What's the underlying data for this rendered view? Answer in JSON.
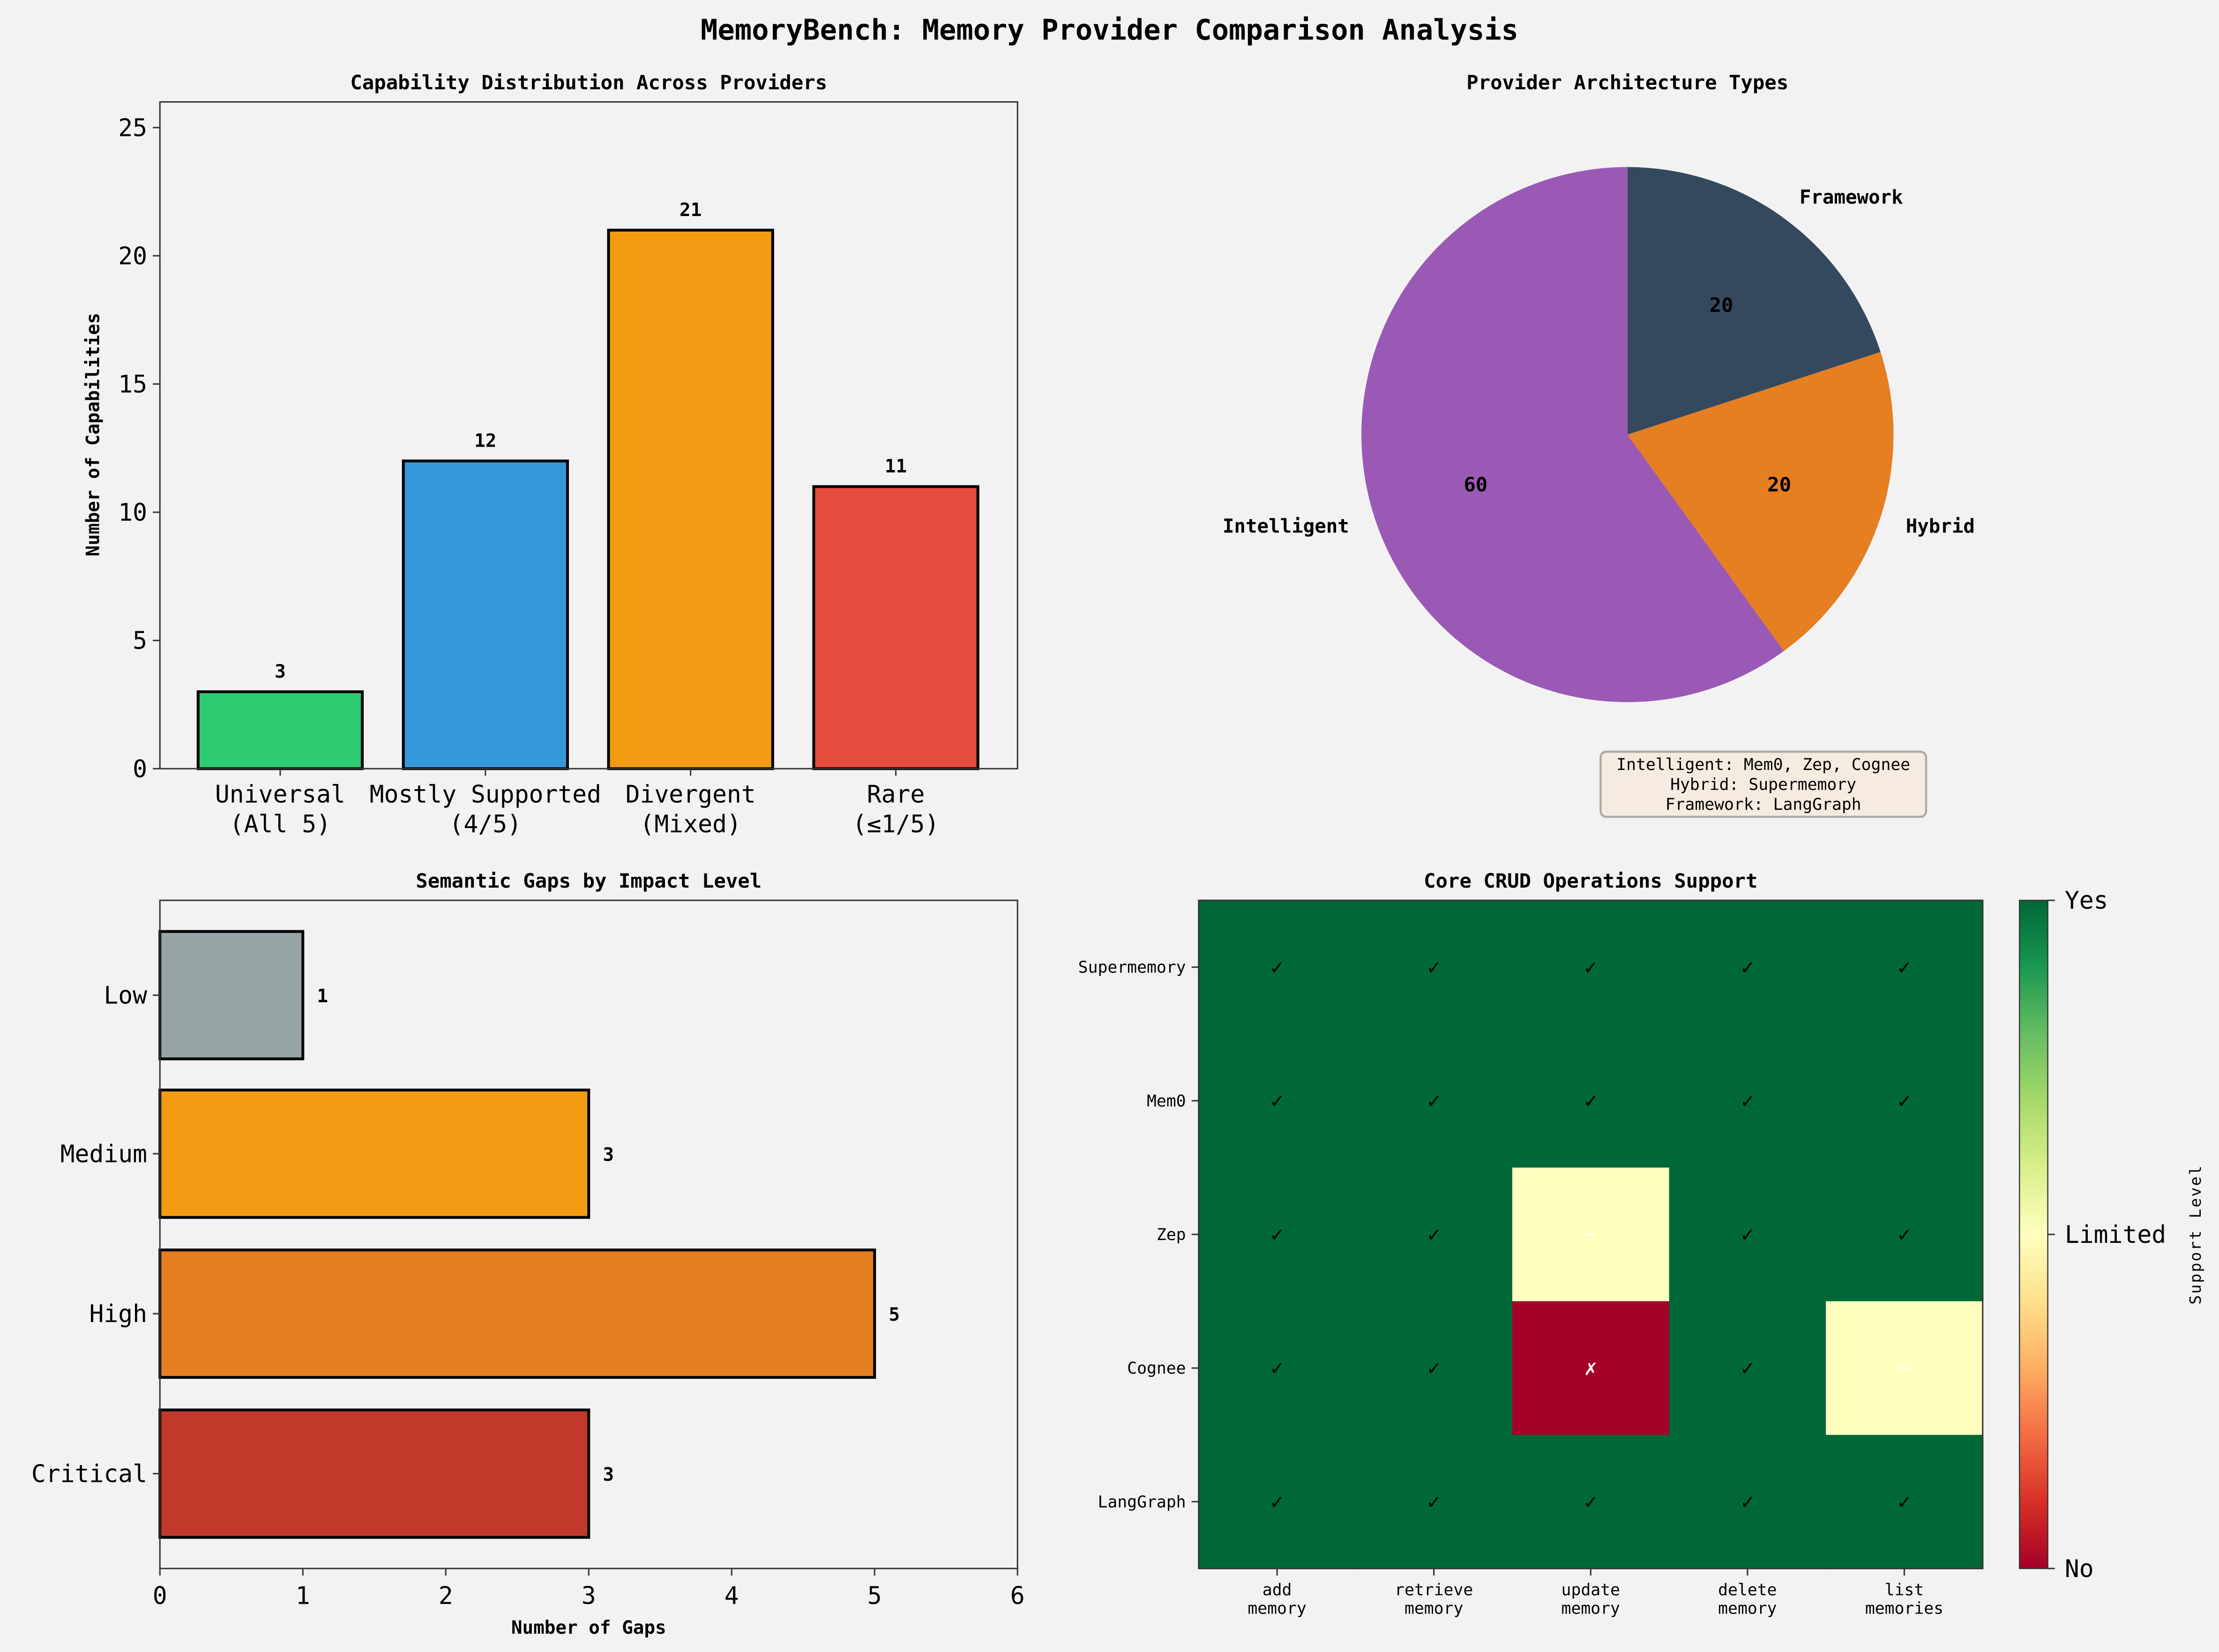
{
  "figure": {
    "title": "MemoryBench: Memory Provider Comparison Analysis",
    "background": "#f2f2f2"
  },
  "chart_data": [
    {
      "id": "capability-distribution",
      "type": "bar",
      "title": "Capability Distribution Across Providers",
      "xlabel": "",
      "ylabel": "Number of Capabilities",
      "categories": [
        "Universal\n(All 5)",
        "Mostly Supported\n(4/5)",
        "Divergent\n(Mixed)",
        "Rare\n(≤1/5)"
      ],
      "values": [
        3,
        12,
        21,
        11
      ],
      "data_labels": [
        "3",
        "12",
        "21",
        "11"
      ],
      "colors": [
        "#2ecc71",
        "#3498db",
        "#f39c12",
        "#e74c3c"
      ],
      "edge_color": "#000000",
      "ylim": [
        0,
        26
      ],
      "yticks": [
        0,
        5,
        10,
        15,
        20,
        25
      ],
      "ytick_labels": [
        "0",
        "5",
        "10",
        "15",
        "20",
        "25"
      ],
      "grid": false
    },
    {
      "id": "architecture-types",
      "type": "pie",
      "title": "Provider Architecture Types",
      "labels": [
        "Intelligent",
        "Hybrid",
        "Framework"
      ],
      "values": [
        60,
        20,
        20
      ],
      "pct_labels": [
        "60",
        "20",
        "20"
      ],
      "colors": [
        "#9b59b6",
        "#e67e22",
        "#34495e"
      ],
      "start_angle_deg": 90,
      "annotation": {
        "lines": [
          "Intelligent: Mem0, Zep, Cognee",
          "Hybrid: Supermemory",
          "Framework: LangGraph"
        ],
        "box_color": "#f5ebe0"
      }
    },
    {
      "id": "semantic-gaps",
      "type": "bar",
      "orientation": "horizontal",
      "title": "Semantic Gaps by Impact Level",
      "xlabel": "Number of Gaps",
      "ylabel": "",
      "categories": [
        "Critical",
        "High",
        "Medium",
        "Low"
      ],
      "values": [
        3,
        5,
        3,
        1
      ],
      "data_labels": [
        "3",
        "5",
        "3",
        "1"
      ],
      "colors": [
        "#c0392b",
        "#e67e22",
        "#f39c12",
        "#95a5a6"
      ],
      "edge_color": "#000000",
      "xlim": [
        0,
        6
      ],
      "xticks": [
        0,
        1,
        2,
        3,
        4,
        5,
        6
      ],
      "xtick_labels": [
        "0",
        "1",
        "2",
        "3",
        "4",
        "5",
        "6"
      ],
      "grid": false
    },
    {
      "id": "crud-support",
      "type": "heatmap",
      "title": "Core CRUD Operations Support",
      "rows": [
        "Supermemory",
        "Mem0",
        "Zep",
        "Cognee",
        "LangGraph"
      ],
      "columns": [
        "add\nmemory",
        "retrieve\nmemory",
        "update\nmemory",
        "delete\nmemory",
        "list\nmemories"
      ],
      "values": [
        [
          1,
          1,
          1,
          1,
          1
        ],
        [
          1,
          1,
          1,
          1,
          1
        ],
        [
          1,
          1,
          0.5,
          1,
          1
        ],
        [
          1,
          1,
          0,
          1,
          0.5
        ],
        [
          1,
          1,
          1,
          1,
          1
        ]
      ],
      "symbols": [
        [
          "✓",
          "✓",
          "✓",
          "✓",
          "✓"
        ],
        [
          "✓",
          "✓",
          "✓",
          "✓",
          "✓"
        ],
        [
          "✓",
          "✓",
          "~",
          "✓",
          "✓"
        ],
        [
          "✓",
          "✓",
          "✗",
          "✓",
          "~"
        ],
        [
          "✓",
          "✓",
          "✓",
          "✓",
          "✓"
        ]
      ],
      "colormap": "RdYlGn",
      "vmin": 0,
      "vmax": 1,
      "colorbar": {
        "label": "Support Level",
        "ticks": [
          0,
          0.5,
          1
        ],
        "tick_labels": [
          "No",
          "Limited",
          "Yes"
        ]
      }
    }
  ]
}
